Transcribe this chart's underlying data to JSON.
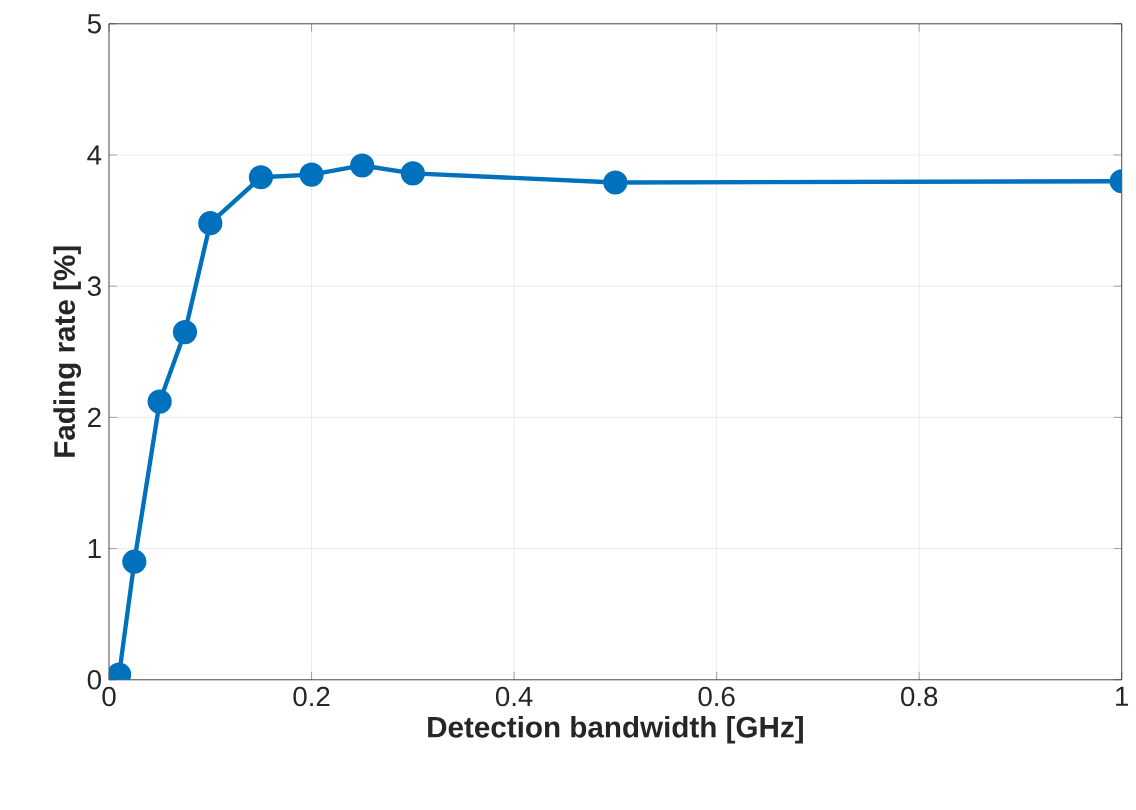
{
  "chart_data": {
    "type": "line",
    "xlabel": "Detection bandwidth [GHz]",
    "ylabel": "Fading rate [%]",
    "x": [
      0.01,
      0.025,
      0.05,
      0.075,
      0.1,
      0.15,
      0.2,
      0.25,
      0.3,
      0.5,
      1
    ],
    "series": [
      {
        "color": "#0072bd",
        "values": [
          0.04,
          0.9,
          2.12,
          2.65,
          3.48,
          3.83,
          3.85,
          3.92,
          3.86,
          3.79,
          3.8
        ]
      }
    ],
    "xlim": [
      0,
      1
    ],
    "ylim": [
      0,
      5
    ],
    "xticks": [
      0,
      0.2,
      0.4,
      0.6,
      0.8,
      1
    ],
    "yticks": [
      0,
      1,
      2,
      3,
      4,
      5
    ],
    "grid": true,
    "marker": "circle",
    "line_style": "solid"
  }
}
